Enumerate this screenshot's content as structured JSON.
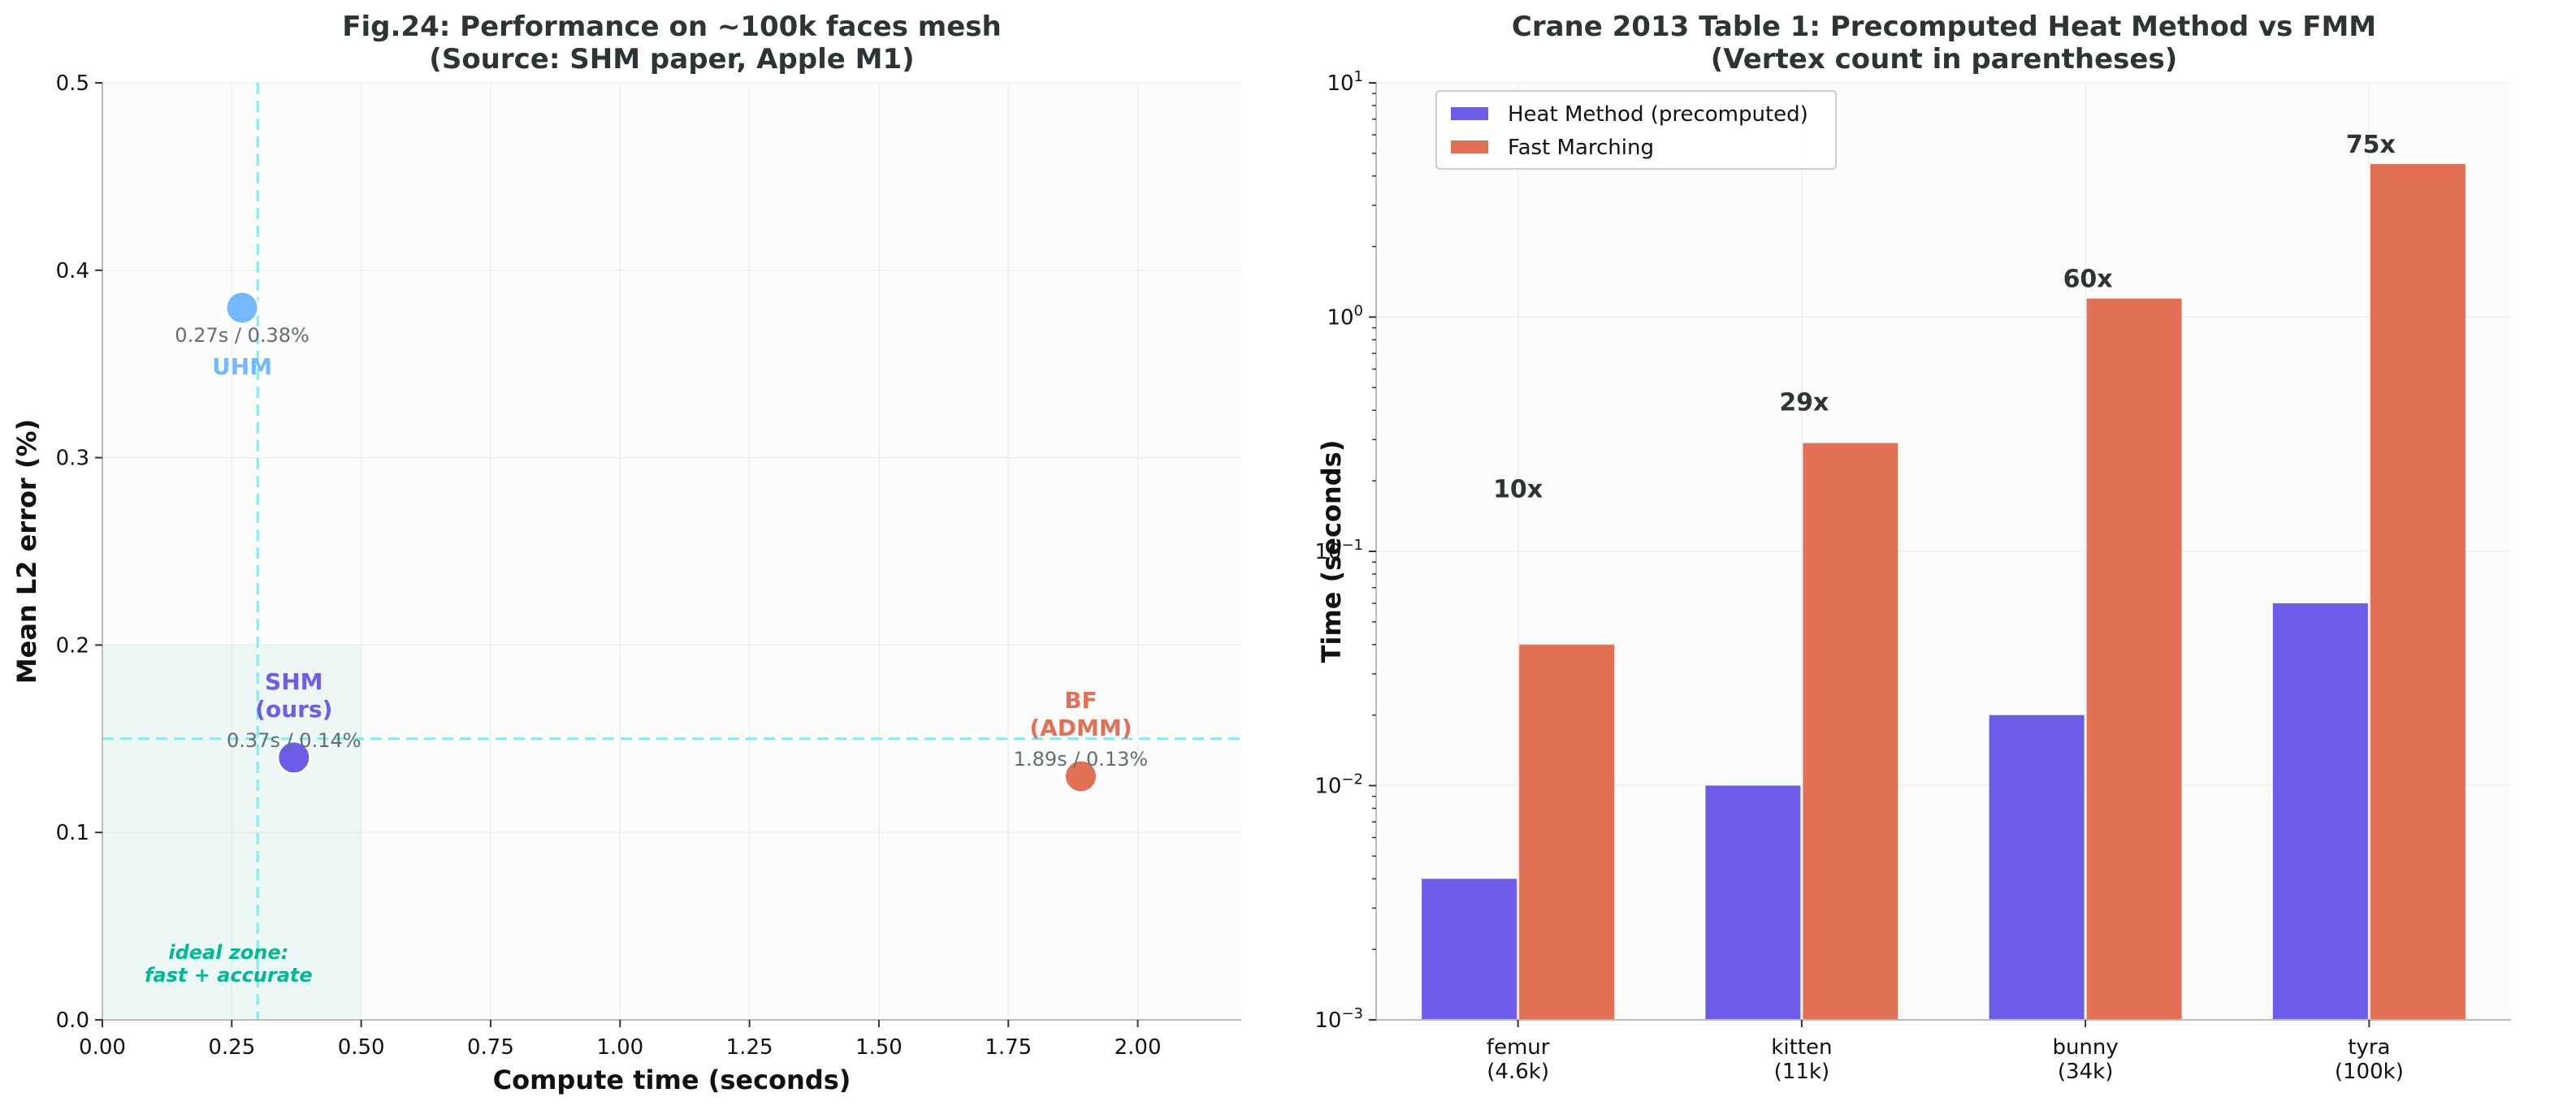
{
  "chart_data": [
    {
      "type": "scatter",
      "title": "Fig.24: Performance on ~100k faces mesh",
      "subtitle": "(Source: SHM paper, Apple M1)",
      "xlabel": "Compute time (seconds)",
      "ylabel": "Mean L2 error (%)",
      "xlim": [
        0,
        2.2
      ],
      "ylim": [
        0,
        0.5
      ],
      "xticks": [
        "0.00",
        "0.25",
        "0.50",
        "0.75",
        "1.00",
        "1.25",
        "1.50",
        "1.75",
        "2.00"
      ],
      "yticks": [
        "0.0",
        "0.1",
        "0.2",
        "0.3",
        "0.4",
        "0.5"
      ],
      "grid": true,
      "points": [
        {
          "label_lines": [
            "UHM"
          ],
          "x": 0.27,
          "y": 0.38,
          "color": "#74b9ff",
          "annotation": "0.27s / 0.38%"
        },
        {
          "label_lines": [
            "SHM",
            "(ours)"
          ],
          "x": 0.37,
          "y": 0.14,
          "color": "#6c5ce7",
          "annotation": "0.37s / 0.14%"
        },
        {
          "label_lines": [
            "BF",
            "(ADMM)"
          ],
          "x": 1.89,
          "y": 0.13,
          "color": "#e17055",
          "annotation": "1.89s / 0.13%"
        }
      ],
      "reference_lines": {
        "x": 0.3,
        "y": 0.15,
        "color": "#81ecec"
      },
      "ideal_zone": {
        "x": [
          0,
          0.5
        ],
        "y": [
          0,
          0.2
        ],
        "label_lines": [
          "ideal zone:",
          "fast + accurate"
        ],
        "color": "#00b894"
      }
    },
    {
      "type": "bar",
      "title": "Crane 2013 Table 1: Precomputed Heat Method vs FMM",
      "subtitle": "(Vertex count in parentheses)",
      "xlabel": "",
      "ylabel": "Time (seconds)",
      "yscale": "log",
      "ylim": [
        0.001,
        10
      ],
      "yticks": [
        {
          "base": "10",
          "exp": "−3"
        },
        {
          "base": "10",
          "exp": "−2"
        },
        {
          "base": "10",
          "exp": "−1"
        },
        {
          "base": "10",
          "exp": "0"
        },
        {
          "base": "10",
          "exp": "1"
        }
      ],
      "grid": true,
      "legend_position": "top-left",
      "categories": [
        {
          "name": "femur",
          "vertices": "(4.6k)"
        },
        {
          "name": "kitten",
          "vertices": "(11k)"
        },
        {
          "name": "bunny",
          "vertices": "(34k)"
        },
        {
          "name": "tyra",
          "vertices": "(100k)"
        }
      ],
      "series": [
        {
          "name": "Heat Method (precomputed)",
          "color": "#6c5ce7",
          "values": [
            0.004,
            0.01,
            0.02,
            0.06
          ]
        },
        {
          "name": "Fast Marching",
          "color": "#e17055",
          "values": [
            0.04,
            0.29,
            1.2,
            4.5
          ]
        }
      ],
      "speedups": [
        "10x",
        "29x",
        "60x",
        "75x"
      ]
    }
  ]
}
